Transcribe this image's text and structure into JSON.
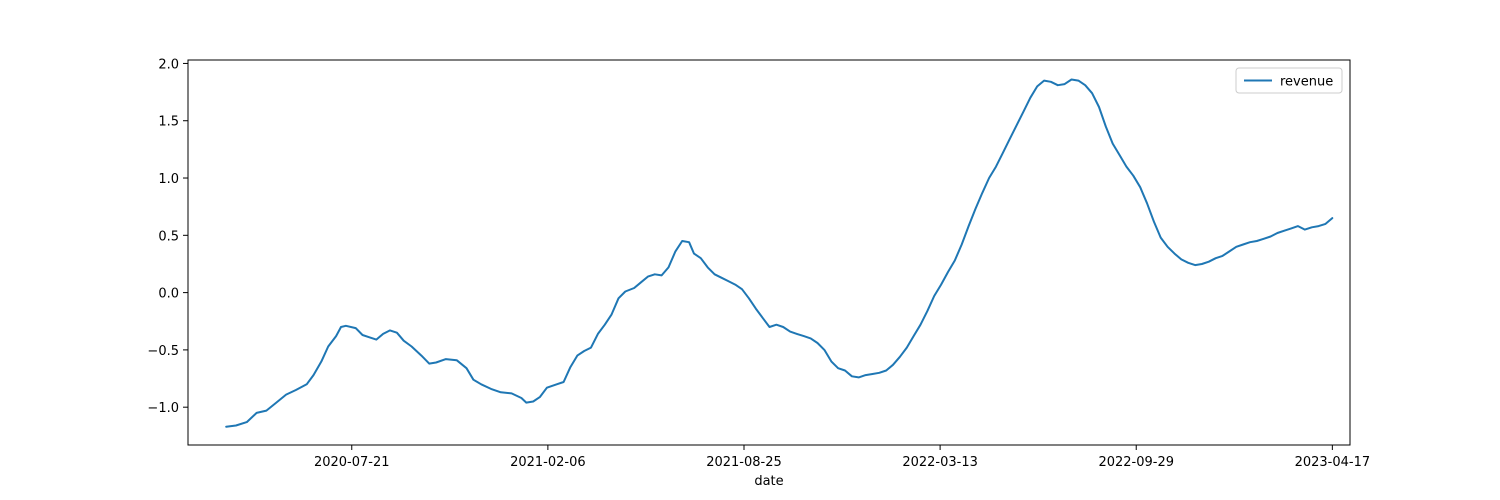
{
  "chart_data": {
    "type": "line",
    "title": "",
    "xlabel": "date",
    "ylabel": "",
    "x_ticks": [
      "2020-07-21",
      "2021-02-06",
      "2021-08-25",
      "2022-03-13",
      "2022-09-29",
      "2023-04-17"
    ],
    "y_ticks": [
      "−1.0",
      "−0.5",
      "0.0",
      "0.5",
      "1.0",
      "1.5",
      "2.0"
    ],
    "xlim": [
      "2020-02-05",
      "2023-05-05"
    ],
    "ylim": [
      -1.33,
      2.03
    ],
    "grid": false,
    "legend_position": "top-right",
    "series": [
      {
        "name": "revenue",
        "color": "#1f77b4",
        "points": [
          [
            "2020-03-15",
            -1.17
          ],
          [
            "2020-03-25",
            -1.16
          ],
          [
            "2020-04-05",
            -1.13
          ],
          [
            "2020-04-15",
            -1.05
          ],
          [
            "2020-04-25",
            -1.03
          ],
          [
            "2020-05-05",
            -0.96
          ],
          [
            "2020-05-15",
            -0.89
          ],
          [
            "2020-05-25",
            -0.85
          ],
          [
            "2020-06-05",
            -0.8
          ],
          [
            "2020-06-12",
            -0.72
          ],
          [
            "2020-06-20",
            -0.6
          ],
          [
            "2020-06-27",
            -0.47
          ],
          [
            "2020-07-05",
            -0.38
          ],
          [
            "2020-07-10",
            -0.3
          ],
          [
            "2020-07-15",
            -0.29
          ],
          [
            "2020-07-25",
            -0.31
          ],
          [
            "2020-08-01",
            -0.37
          ],
          [
            "2020-08-08",
            -0.39
          ],
          [
            "2020-08-15",
            -0.41
          ],
          [
            "2020-08-22",
            -0.36
          ],
          [
            "2020-08-29",
            -0.33
          ],
          [
            "2020-09-05",
            -0.35
          ],
          [
            "2020-09-12",
            -0.42
          ],
          [
            "2020-09-20",
            -0.47
          ],
          [
            "2020-09-30",
            -0.55
          ],
          [
            "2020-10-08",
            -0.62
          ],
          [
            "2020-10-15",
            -0.61
          ],
          [
            "2020-10-25",
            -0.58
          ],
          [
            "2020-11-05",
            -0.59
          ],
          [
            "2020-11-15",
            -0.66
          ],
          [
            "2020-11-22",
            -0.76
          ],
          [
            "2020-11-30",
            -0.8
          ],
          [
            "2020-12-10",
            -0.84
          ],
          [
            "2020-12-20",
            -0.87
          ],
          [
            "2020-12-31",
            -0.88
          ],
          [
            "2021-01-10",
            -0.92
          ],
          [
            "2021-01-15",
            -0.96
          ],
          [
            "2021-01-22",
            -0.95
          ],
          [
            "2021-01-29",
            -0.91
          ],
          [
            "2021-02-05",
            -0.83
          ],
          [
            "2021-02-15",
            -0.8
          ],
          [
            "2021-02-22",
            -0.78
          ],
          [
            "2021-03-01",
            -0.65
          ],
          [
            "2021-03-08",
            -0.55
          ],
          [
            "2021-03-15",
            -0.51
          ],
          [
            "2021-03-22",
            -0.48
          ],
          [
            "2021-03-29",
            -0.36
          ],
          [
            "2021-04-05",
            -0.28
          ],
          [
            "2021-04-12",
            -0.19
          ],
          [
            "2021-04-19",
            -0.05
          ],
          [
            "2021-04-26",
            0.01
          ],
          [
            "2021-05-05",
            0.04
          ],
          [
            "2021-05-12",
            0.09
          ],
          [
            "2021-05-19",
            0.14
          ],
          [
            "2021-05-26",
            0.16
          ],
          [
            "2021-06-02",
            0.15
          ],
          [
            "2021-06-09",
            0.22
          ],
          [
            "2021-06-16",
            0.36
          ],
          [
            "2021-06-23",
            0.45
          ],
          [
            "2021-06-30",
            0.44
          ],
          [
            "2021-07-05",
            0.34
          ],
          [
            "2021-07-12",
            0.3
          ],
          [
            "2021-07-19",
            0.22
          ],
          [
            "2021-07-26",
            0.16
          ],
          [
            "2021-08-02",
            0.13
          ],
          [
            "2021-08-09",
            0.1
          ],
          [
            "2021-08-16",
            0.07
          ],
          [
            "2021-08-23",
            0.03
          ],
          [
            "2021-08-30",
            -0.05
          ],
          [
            "2021-09-06",
            -0.14
          ],
          [
            "2021-09-13",
            -0.22
          ],
          [
            "2021-09-20",
            -0.3
          ],
          [
            "2021-09-27",
            -0.28
          ],
          [
            "2021-10-04",
            -0.3
          ],
          [
            "2021-10-11",
            -0.34
          ],
          [
            "2021-10-18",
            -0.36
          ],
          [
            "2021-10-25",
            -0.38
          ],
          [
            "2021-11-01",
            -0.4
          ],
          [
            "2021-11-08",
            -0.44
          ],
          [
            "2021-11-15",
            -0.5
          ],
          [
            "2021-11-22",
            -0.6
          ],
          [
            "2021-11-29",
            -0.66
          ],
          [
            "2021-12-06",
            -0.68
          ],
          [
            "2021-12-13",
            -0.73
          ],
          [
            "2021-12-20",
            -0.74
          ],
          [
            "2021-12-27",
            -0.72
          ],
          [
            "2022-01-03",
            -0.71
          ],
          [
            "2022-01-10",
            -0.7
          ],
          [
            "2022-01-17",
            -0.68
          ],
          [
            "2022-01-24",
            -0.63
          ],
          [
            "2022-01-31",
            -0.56
          ],
          [
            "2022-02-07",
            -0.48
          ],
          [
            "2022-02-14",
            -0.38
          ],
          [
            "2022-02-21",
            -0.28
          ],
          [
            "2022-02-28",
            -0.16
          ],
          [
            "2022-03-07",
            -0.03
          ],
          [
            "2022-03-14",
            0.07
          ],
          [
            "2022-03-21",
            0.18
          ],
          [
            "2022-03-28",
            0.28
          ],
          [
            "2022-04-04",
            0.42
          ],
          [
            "2022-04-11",
            0.58
          ],
          [
            "2022-04-18",
            0.73
          ],
          [
            "2022-04-25",
            0.87
          ],
          [
            "2022-05-02",
            1.0
          ],
          [
            "2022-05-09",
            1.1
          ],
          [
            "2022-05-16",
            1.22
          ],
          [
            "2022-05-23",
            1.34
          ],
          [
            "2022-05-30",
            1.46
          ],
          [
            "2022-06-06",
            1.58
          ],
          [
            "2022-06-13",
            1.7
          ],
          [
            "2022-06-20",
            1.8
          ],
          [
            "2022-06-27",
            1.85
          ],
          [
            "2022-07-04",
            1.84
          ],
          [
            "2022-07-11",
            1.81
          ],
          [
            "2022-07-18",
            1.82
          ],
          [
            "2022-07-25",
            1.86
          ],
          [
            "2022-08-01",
            1.85
          ],
          [
            "2022-08-08",
            1.81
          ],
          [
            "2022-08-15",
            1.74
          ],
          [
            "2022-08-22",
            1.62
          ],
          [
            "2022-08-29",
            1.45
          ],
          [
            "2022-09-05",
            1.3
          ],
          [
            "2022-09-12",
            1.2
          ],
          [
            "2022-09-19",
            1.1
          ],
          [
            "2022-09-26",
            1.02
          ],
          [
            "2022-10-03",
            0.92
          ],
          [
            "2022-10-10",
            0.78
          ],
          [
            "2022-10-17",
            0.62
          ],
          [
            "2022-10-24",
            0.48
          ],
          [
            "2022-10-31",
            0.4
          ],
          [
            "2022-11-07",
            0.34
          ],
          [
            "2022-11-14",
            0.29
          ],
          [
            "2022-11-21",
            0.26
          ],
          [
            "2022-11-28",
            0.24
          ],
          [
            "2022-12-05",
            0.25
          ],
          [
            "2022-12-12",
            0.27
          ],
          [
            "2022-12-19",
            0.3
          ],
          [
            "2022-12-26",
            0.32
          ],
          [
            "2023-01-02",
            0.36
          ],
          [
            "2023-01-09",
            0.4
          ],
          [
            "2023-01-16",
            0.42
          ],
          [
            "2023-01-23",
            0.44
          ],
          [
            "2023-01-30",
            0.45
          ],
          [
            "2023-02-06",
            0.47
          ],
          [
            "2023-02-13",
            0.49
          ],
          [
            "2023-02-20",
            0.52
          ],
          [
            "2023-02-27",
            0.54
          ],
          [
            "2023-03-06",
            0.56
          ],
          [
            "2023-03-13",
            0.58
          ],
          [
            "2023-03-20",
            0.55
          ],
          [
            "2023-03-27",
            0.57
          ],
          [
            "2023-04-03",
            0.58
          ],
          [
            "2023-04-10",
            0.6
          ],
          [
            "2023-04-17",
            0.65
          ]
        ]
      }
    ]
  }
}
